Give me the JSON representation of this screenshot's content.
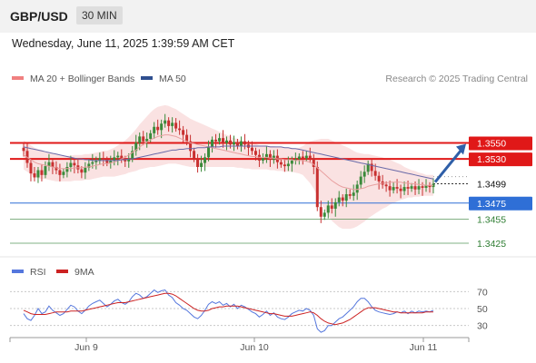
{
  "header": {
    "pair": "GBP/USD",
    "timeframe": "30 MIN"
  },
  "timestamp": "Wednesday, June 11, 2025 1:39:59 AM CET",
  "legend": {
    "ma20_bb": "MA 20 + Bollinger Bands",
    "ma50": "MA 50",
    "rsi": "RSI",
    "rsi_ma": "9MA"
  },
  "copyright": "Research © 2025 Trading Central",
  "colors": {
    "up": "#3a8a3a",
    "down": "#c83030",
    "ma20_band": "#f8d8d8",
    "ma50": "#6a6aa8",
    "resistance": "#e01818",
    "support": "#2f6fd6",
    "target": "#2e7d32",
    "arrow": "#2f5fa8",
    "rsi": "#5577dd",
    "rsi_ma": "#cc2222"
  },
  "chart_data": [
    {
      "type": "line",
      "title": "GBP/USD 30 MIN",
      "x_ticks": [
        "Jun 9",
        "Jun 10",
        "Jun 11"
      ],
      "ylim": [
        1.3408,
        1.3615
      ],
      "current_price": "1.3499",
      "levels": [
        {
          "label": "1.3550",
          "value": 1.355,
          "kind": "resistance"
        },
        {
          "label": "1.3530",
          "value": 1.353,
          "kind": "resistance"
        },
        {
          "label": "1.3475",
          "value": 1.3475,
          "kind": "support"
        },
        {
          "label": "1.3455",
          "value": 1.3455,
          "kind": "target"
        },
        {
          "label": "1.3425",
          "value": 1.3425,
          "kind": "target"
        }
      ],
      "projection_to": 1.355,
      "close": [
        1.354,
        1.3525,
        1.3512,
        1.3507,
        1.3516,
        1.351,
        1.3521,
        1.3526,
        1.352,
        1.3516,
        1.351,
        1.3514,
        1.352,
        1.3525,
        1.3522,
        1.3517,
        1.3513,
        1.3519,
        1.3524,
        1.3526,
        1.3528,
        1.3531,
        1.3529,
        1.3525,
        1.3528,
        1.3532,
        1.3534,
        1.353,
        1.3527,
        1.353,
        1.354,
        1.355,
        1.3558,
        1.3552,
        1.3555,
        1.3562,
        1.357,
        1.3566,
        1.3574,
        1.3578,
        1.3571,
        1.3575,
        1.3568,
        1.3566,
        1.356,
        1.3552,
        1.354,
        1.353,
        1.352,
        1.3525,
        1.3532,
        1.3545,
        1.3554,
        1.3552,
        1.3556,
        1.355,
        1.3553,
        1.3548,
        1.3551,
        1.3546,
        1.3552,
        1.3548,
        1.3544,
        1.354,
        1.3535,
        1.3528,
        1.3531,
        1.3536,
        1.3529,
        1.3534,
        1.3526,
        1.3523,
        1.3521,
        1.3524,
        1.3528,
        1.353,
        1.3533,
        1.3531,
        1.3534,
        1.3531,
        1.352,
        1.347,
        1.3458,
        1.3463,
        1.3472,
        1.3468,
        1.3476,
        1.3482,
        1.3478,
        1.3486,
        1.3484,
        1.3488,
        1.3498,
        1.3508,
        1.3514,
        1.3524,
        1.3515,
        1.3509,
        1.3502,
        1.3498,
        1.3496,
        1.3491,
        1.3495,
        1.3493,
        1.349,
        1.3495,
        1.3493,
        1.3496,
        1.3492,
        1.3496,
        1.3494,
        1.3497,
        1.3495,
        1.3499
      ],
      "ma20": [
        1.3535,
        1.3532,
        1.3529,
        1.3526,
        1.3524,
        1.3523,
        1.3522,
        1.3521,
        1.352,
        1.3519,
        1.3518,
        1.3518,
        1.3518,
        1.3518,
        1.3519,
        1.3519,
        1.3519,
        1.352,
        1.352,
        1.3521,
        1.3522,
        1.3523,
        1.3524,
        1.3524,
        1.3525,
        1.3526,
        1.3528,
        1.353,
        1.3532,
        1.3535,
        1.3538,
        1.3541,
        1.3545,
        1.3548,
        1.3551,
        1.3554,
        1.3556,
        1.3558,
        1.3559,
        1.356,
        1.356,
        1.3559,
        1.3558,
        1.3556,
        1.3554,
        1.3552,
        1.355,
        1.3549,
        1.3548,
        1.3547,
        1.3546,
        1.3545,
        1.3544,
        1.3543,
        1.3542,
        1.3541,
        1.354,
        1.3539,
        1.3538,
        1.3537,
        1.3536,
        1.3535,
        1.3534,
        1.3533,
        1.3533,
        1.3532,
        1.3532,
        1.3532,
        1.3531,
        1.3531,
        1.353,
        1.353,
        1.3529,
        1.3529,
        1.3529,
        1.3528,
        1.3528,
        1.3528,
        1.3527,
        1.3526,
        1.3523,
        1.3519,
        1.3515,
        1.3511,
        1.3507,
        1.3503,
        1.35,
        1.3497,
        1.3495,
        1.3494,
        1.3493,
        1.3492,
        1.3492,
        1.3493,
        1.3494,
        1.3496,
        1.3497,
        1.3498,
        1.3499,
        1.35,
        1.35,
        1.3501,
        1.3501,
        1.3501,
        1.3501,
        1.35,
        1.35,
        1.3499,
        1.3499,
        1.3498,
        1.3498,
        1.3497,
        1.3497,
        1.3497
      ],
      "bb_width": [
        0.0018,
        0.0018,
        0.0018,
        0.0018,
        0.0018,
        0.0018,
        0.0017,
        0.0017,
        0.0017,
        0.0017,
        0.0016,
        0.0016,
        0.0016,
        0.0016,
        0.0016,
        0.0016,
        0.0016,
        0.0016,
        0.0016,
        0.0016,
        0.0016,
        0.0016,
        0.0016,
        0.0016,
        0.0017,
        0.0018,
        0.0019,
        0.002,
        0.0021,
        0.0022,
        0.0024,
        0.0026,
        0.0028,
        0.003,
        0.0032,
        0.0034,
        0.0036,
        0.0037,
        0.0037,
        0.0037,
        0.0036,
        0.0035,
        0.0034,
        0.0033,
        0.0032,
        0.0031,
        0.003,
        0.0029,
        0.0028,
        0.0027,
        0.0026,
        0.0025,
        0.0024,
        0.0023,
        0.0022,
        0.0021,
        0.002,
        0.0019,
        0.0018,
        0.0018,
        0.0017,
        0.0017,
        0.0016,
        0.0016,
        0.0016,
        0.0015,
        0.0015,
        0.0015,
        0.0015,
        0.0015,
        0.0015,
        0.0015,
        0.0015,
        0.0015,
        0.0015,
        0.0015,
        0.0016,
        0.0018,
        0.0022,
        0.0026,
        0.003,
        0.0035,
        0.004,
        0.0044,
        0.0048,
        0.005,
        0.0051,
        0.0052,
        0.0052,
        0.0051,
        0.005,
        0.0048,
        0.0046,
        0.0044,
        0.0042,
        0.004,
        0.0038,
        0.0036,
        0.0034,
        0.0032,
        0.003,
        0.0028,
        0.0026,
        0.0024,
        0.0022,
        0.002,
        0.0018,
        0.0017,
        0.0016,
        0.0015,
        0.0014,
        0.0013,
        0.0013,
        0.0013,
        0.0013
      ],
      "ma50": [
        1.3545,
        1.3544,
        1.3543,
        1.3542,
        1.3541,
        1.354,
        1.3539,
        1.3538,
        1.3537,
        1.3536,
        1.3535,
        1.3534,
        1.3533,
        1.3532,
        1.3531,
        1.353,
        1.353,
        1.3529,
        1.3529,
        1.3528,
        1.3528,
        1.3528,
        1.3528,
        1.3528,
        1.3528,
        1.3528,
        1.3528,
        1.3529,
        1.3529,
        1.353,
        1.353,
        1.3531,
        1.3532,
        1.3533,
        1.3534,
        1.3535,
        1.3536,
        1.3537,
        1.3538,
        1.3539,
        1.354,
        1.3541,
        1.3541,
        1.3542,
        1.3542,
        1.3543,
        1.3543,
        1.3543,
        1.3544,
        1.3544,
        1.3544,
        1.3545,
        1.3545,
        1.3545,
        1.3545,
        1.3546,
        1.3546,
        1.3546,
        1.3546,
        1.3546,
        1.3546,
        1.3546,
        1.3546,
        1.3546,
        1.3546,
        1.3546,
        1.3546,
        1.3546,
        1.3545,
        1.3545,
        1.3545,
        1.3545,
        1.3544,
        1.3544,
        1.3543,
        1.3543,
        1.3542,
        1.3541,
        1.354,
        1.3539,
        1.3538,
        1.3537,
        1.3536,
        1.3535,
        1.3534,
        1.3533,
        1.3532,
        1.3531,
        1.353,
        1.3529,
        1.3528,
        1.3527,
        1.3526,
        1.3525,
        1.3524,
        1.3523,
        1.3522,
        1.3521,
        1.352,
        1.3519,
        1.3518,
        1.3517,
        1.3516,
        1.3515,
        1.3514,
        1.3513,
        1.3512,
        1.3511,
        1.351,
        1.3509,
        1.3508,
        1.3507,
        1.3506,
        1.3505
      ]
    },
    {
      "type": "line",
      "title": "RSI",
      "yticks": [
        70,
        50,
        30
      ],
      "ylim": [
        20,
        80
      ],
      "rsi": [
        44,
        38,
        36,
        42,
        50,
        44,
        46,
        53,
        48,
        45,
        42,
        44,
        49,
        54,
        52,
        47,
        44,
        48,
        53,
        56,
        58,
        60,
        56,
        52,
        55,
        59,
        61,
        57,
        55,
        58,
        64,
        68,
        66,
        62,
        64,
        68,
        72,
        69,
        71,
        72,
        66,
        63,
        57,
        54,
        50,
        48,
        44,
        40,
        38,
        42,
        48,
        55,
        58,
        56,
        58,
        54,
        56,
        52,
        55,
        50,
        54,
        52,
        49,
        46,
        44,
        40,
        43,
        47,
        42,
        45,
        40,
        38,
        37,
        40,
        44,
        46,
        48,
        47,
        50,
        48,
        42,
        26,
        22,
        24,
        30,
        30,
        34,
        38,
        40,
        44,
        48,
        52,
        58,
        62,
        62,
        58,
        52,
        48,
        46,
        45,
        44,
        43,
        44,
        46,
        45,
        47,
        44,
        47,
        45,
        47,
        46,
        47,
        46,
        48
      ],
      "rsi_ma": [
        48,
        46,
        44,
        43,
        43,
        43,
        43,
        44,
        45,
        46,
        46,
        46,
        46,
        47,
        47,
        47,
        47,
        48,
        49,
        50,
        51,
        52,
        53,
        54,
        55,
        56,
        57,
        57,
        57,
        58,
        59,
        60,
        61,
        62,
        63,
        64,
        65,
        66,
        67,
        68,
        68,
        67,
        65,
        62,
        59,
        56,
        53,
        50,
        48,
        47,
        47,
        48,
        50,
        51,
        52,
        52,
        53,
        53,
        53,
        53,
        52,
        51,
        50,
        49,
        48,
        47,
        46,
        45,
        44,
        44,
        43,
        42,
        41,
        41,
        41,
        42,
        43,
        44,
        45,
        46,
        45,
        42,
        38,
        35,
        33,
        32,
        31,
        32,
        33,
        35,
        37,
        40,
        43,
        46,
        49,
        51,
        51,
        51,
        50,
        49,
        48,
        47,
        46,
        46,
        45,
        45,
        45,
        45,
        45,
        45,
        45,
        46,
        46,
        46
      ]
    }
  ]
}
